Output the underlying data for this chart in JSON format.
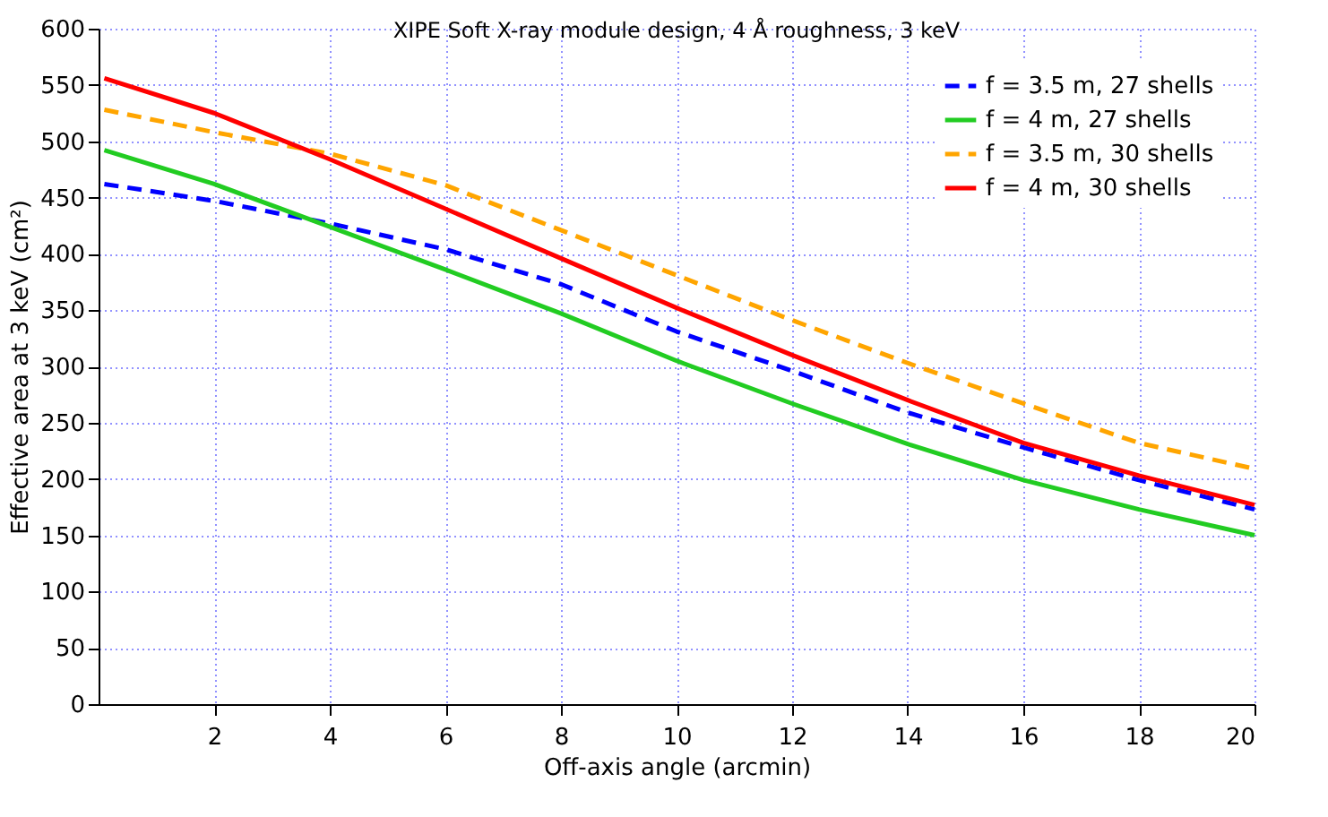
{
  "chart_data": {
    "type": "line",
    "title": "XIPE Soft X-ray module design, 4 Å roughness, 3 keV",
    "xlabel": "Off-axis angle (arcmin)",
    "ylabel": "Effective area at 3 keV (cm²)",
    "x": [
      0.1,
      2,
      4,
      6,
      8,
      10,
      12,
      14,
      16,
      18,
      20
    ],
    "series": [
      {
        "name": "f = 3.5 m, 27 shells",
        "color": "#0000ff",
        "line_style": "dashed",
        "values": [
          462,
          447,
          427,
          404,
          373,
          331,
          296,
          259,
          228,
          199,
          173
        ]
      },
      {
        "name": "f = 4 m, 27 shells",
        "color": "#22cc22",
        "line_style": "solid",
        "values": [
          492,
          462,
          424,
          386,
          347,
          305,
          267,
          231,
          199,
          173,
          150
        ]
      },
      {
        "name": "f = 3.5 m, 30 shells",
        "color": "#ffa500",
        "line_style": "dashed",
        "values": [
          528,
          508,
          489,
          461,
          421,
          381,
          341,
          303,
          267,
          232,
          209
        ]
      },
      {
        "name": "f = 4 m, 30 shells",
        "color": "#ff0000",
        "line_style": "solid",
        "values": [
          556,
          525,
          484,
          440,
          396,
          352,
          310,
          270,
          232,
          203,
          177
        ]
      }
    ],
    "xlim": [
      0,
      20
    ],
    "xticks": [
      2,
      4,
      6,
      8,
      10,
      12,
      14,
      16,
      18,
      20
    ],
    "ylim": [
      0,
      600
    ],
    "yticks": [
      0,
      50,
      100,
      150,
      200,
      250,
      300,
      350,
      400,
      450,
      500,
      550,
      600
    ],
    "grid": true,
    "legend": "top right"
  }
}
